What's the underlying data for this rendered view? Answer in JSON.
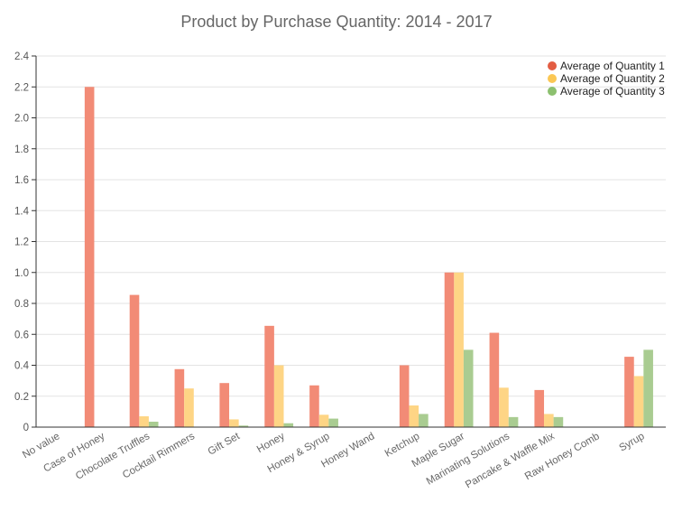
{
  "chart_data": {
    "type": "bar",
    "title": "Product by Purchase Quantity: 2014 - 2017",
    "xlabel": "",
    "ylabel": "",
    "ylim": [
      0,
      2.4
    ],
    "yticks": [
      "0",
      "0.2",
      "0.4",
      "0.6",
      "0.8",
      "1.0",
      "1.2",
      "1.4",
      "1.6",
      "1.8",
      "2.0",
      "2.2",
      "2.4"
    ],
    "grid": true,
    "legend_position": "top-right",
    "categories": [
      "No value",
      "Case of Honey",
      "Chocolate Truffles",
      "Cocktail Rimmers",
      "Gift Set",
      "Honey",
      "Honey & Syrup",
      "Honey Wand",
      "Ketchup",
      "Maple Sugar",
      "Marinating Solutions",
      "Pancake & Waffle Mix",
      "Raw Honey Comb",
      "Syrup"
    ],
    "series": [
      {
        "name": "Average of Quantity 1",
        "color": "#f28b76",
        "legend_color": "#e35d43",
        "values": [
          0,
          2.2,
          0.855,
          0.375,
          0.285,
          0.655,
          0.27,
          0,
          0.4,
          1.0,
          0.61,
          0.24,
          0,
          0.455
        ]
      },
      {
        "name": "Average of Quantity 2",
        "color": "#fed585",
        "legend_color": "#fbc754",
        "values": [
          0,
          0,
          0.07,
          0.25,
          0.05,
          0.4,
          0.08,
          0,
          0.14,
          1.0,
          0.255,
          0.085,
          0,
          0.33
        ]
      },
      {
        "name": "Average of Quantity 3",
        "color": "#a9cc91",
        "legend_color": "#8cc06f",
        "values": [
          0,
          0,
          0.035,
          0,
          0.01,
          0.025,
          0.055,
          0,
          0.085,
          0.5,
          0.065,
          0.065,
          0,
          0.5
        ]
      }
    ]
  }
}
